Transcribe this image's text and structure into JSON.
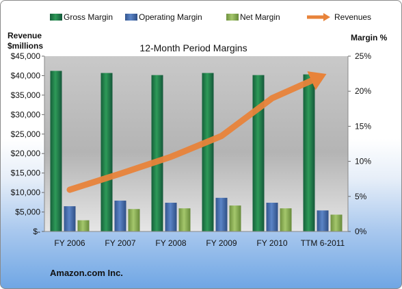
{
  "colors": {
    "gross": "#1e7a44",
    "operating": "#4a6fb0",
    "net": "#8fb25a",
    "revenue": "#e8833a"
  },
  "legend": [
    {
      "label": "Gross Margin",
      "color": "#1e7a44"
    },
    {
      "label": "Operating Margin",
      "color": "#4a6fb0"
    },
    {
      "label": "Net Margin",
      "color": "#8fb25a"
    },
    {
      "label": "Revenues",
      "color": "#e8833a"
    }
  ],
  "footer": {
    "company": "Amazon.com Inc."
  },
  "chart_data": {
    "type": "bar",
    "title": "12-Month Period Margins",
    "ylabel_left": [
      "Revenue",
      "$millions"
    ],
    "ylabel_right": "Margin %",
    "categories": [
      "FY 2006",
      "FY 2007",
      "FY 2008",
      "FY 2009",
      "FY 2010",
      "TTM 6-2011"
    ],
    "left_axis": {
      "min": 0,
      "max": 45000,
      "ticks": [
        "$-",
        "$5,000",
        "$10,000",
        "$15,000",
        "$20,000",
        "$25,000",
        "$30,000",
        "$35,000",
        "$40,000",
        "$45,000"
      ]
    },
    "right_axis": {
      "min": 0,
      "max": 25,
      "ticks": [
        "0%",
        "5%",
        "10%",
        "15%",
        "20%",
        "25%"
      ]
    },
    "series": [
      {
        "name": "Gross Margin",
        "axis": "right",
        "values": [
          22.9,
          22.6,
          22.3,
          22.6,
          22.3,
          22.4
        ]
      },
      {
        "name": "Operating Margin",
        "axis": "right",
        "values": [
          3.6,
          4.4,
          4.1,
          4.8,
          4.1,
          3.0
        ]
      },
      {
        "name": "Net Margin",
        "axis": "right",
        "values": [
          1.6,
          3.2,
          3.3,
          3.7,
          3.3,
          2.4
        ]
      },
      {
        "name": "Revenues",
        "axis": "left",
        "type": "line",
        "values": [
          10711,
          14835,
          19166,
          24509,
          34204,
          40000
        ]
      }
    ],
    "grid": false,
    "legend_position": "top"
  }
}
